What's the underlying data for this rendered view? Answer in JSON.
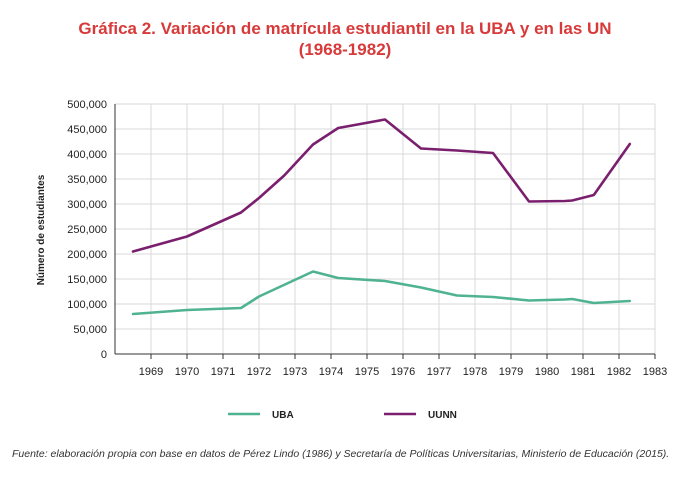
{
  "title_line1": "Gráfica 2. Variación de matrícula estudiantil en la UBA y en las UN",
  "title_line2": "(1968-1982)",
  "source": "Fuente: elaboración propia con base en datos de Pérez Lindo (1986) y Secretaría de Políticas Universitarias, Ministerio de Educación (2015).",
  "colors": {
    "uba": "#4fb391",
    "uunn": "#7a1f6e",
    "grid": "#d8d8d8",
    "title": "#d83a3a"
  },
  "chart_data": {
    "type": "line",
    "title": "Gráfica 2. Variación de matrícula estudiantil en la UBA y en las UN (1968-1982)",
    "xlabel": "",
    "ylabel": "Número de estudiantes",
    "ylim": [
      0,
      500000
    ],
    "xlim": [
      1968,
      1983
    ],
    "grid": true,
    "legend_position": "bottom",
    "y_ticks": [
      "0",
      "50,000",
      "100,000",
      "150,000",
      "200,000",
      "250,000",
      "300,000",
      "350,000",
      "400,000",
      "450,000",
      "500,000"
    ],
    "x_ticks": [
      "1969",
      "1970",
      "1971",
      "1972",
      "1973",
      "1974",
      "1975",
      "1976",
      "1977",
      "1978",
      "1979",
      "1980",
      "1981",
      "1982",
      "1983"
    ],
    "series": [
      {
        "name": "UBA",
        "x": [
          1968.5,
          1970,
          1971.5,
          1972,
          1973.5,
          1974.2,
          1975.5,
          1976.5,
          1977.5,
          1978.5,
          1979.5,
          1980.5,
          1980.7,
          1981.3,
          1982.3
        ],
        "values": [
          80000,
          88000,
          92000,
          115000,
          165000,
          152000,
          146000,
          133000,
          117000,
          114000,
          107000,
          109000,
          110000,
          102000,
          106000
        ]
      },
      {
        "name": "UUNN",
        "x": [
          1968.5,
          1970,
          1971.5,
          1972,
          1972.7,
          1973.5,
          1974.2,
          1975.5,
          1976.5,
          1977.5,
          1978.5,
          1979.5,
          1980.5,
          1980.7,
          1981.3,
          1982.3
        ],
        "values": [
          205000,
          235000,
          283000,
          312000,
          357000,
          419000,
          452000,
          469000,
          411000,
          407000,
          402000,
          305000,
          306000,
          307000,
          318000,
          420000
        ]
      }
    ]
  }
}
